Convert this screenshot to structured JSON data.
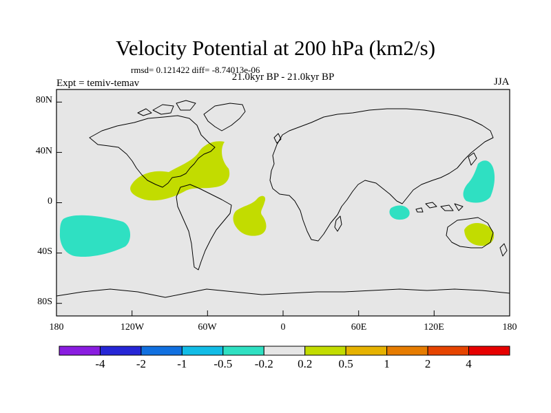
{
  "header": {
    "title": "Velocity Potential at 200 hPa (km2/s)",
    "stats": "rmsd= 0.121422 diff= -8.74013e-06",
    "experiment": "Expt = temiv-temav",
    "period": "21.0kyr BP - 21.0kyr BP",
    "season": "JJA"
  },
  "map": {
    "projection": "cylindrical-equidistant",
    "lon_range": [
      -180,
      180
    ],
    "lat_range": [
      -90,
      90
    ],
    "background_color": "#e6e6e6",
    "coastline_color": "#000000",
    "y_tick_labels": [
      "80N",
      "40N",
      "0",
      "40S",
      "80S"
    ],
    "x_tick_labels": [
      "180",
      "120W",
      "60W",
      "0",
      "60E",
      "120E",
      "180"
    ],
    "anomaly_regions": [
      {
        "name": "Central/eastern North Atlantic and Caribbean",
        "sign": "positive",
        "class": "0.2 to 0.5",
        "color": "#c2dc00"
      },
      {
        "name": "Equatorial South Atlantic",
        "sign": "positive",
        "class": "0.2 to 0.5",
        "color": "#c2dc00"
      },
      {
        "name": "Eastern Australia and Coral Sea",
        "sign": "positive",
        "class": "0.2 to 0.5",
        "color": "#c2dc00"
      },
      {
        "name": "South Pacific near dateline",
        "sign": "negative",
        "class": "-0.5 to -0.2",
        "color": "#2fe0c2"
      },
      {
        "name": "Eastern Indian Ocean",
        "sign": "negative",
        "class": "-0.5 to -0.2",
        "color": "#2fe0c2"
      },
      {
        "name": "Western North Pacific",
        "sign": "negative",
        "class": "-0.5 to -0.2",
        "color": "#2fe0c2"
      }
    ]
  },
  "colorbar": {
    "colors": [
      "#8a1de0",
      "#2626d6",
      "#1170e0",
      "#12bce6",
      "#2fe0c2",
      "#e6e6e6",
      "#c2dc00",
      "#e6b200",
      "#e67c00",
      "#e64400",
      "#e60000"
    ],
    "labels": [
      "-4",
      "-2",
      "-1",
      "-0.5",
      "-0.2",
      "0.2",
      "0.5",
      "1",
      "2",
      "4"
    ]
  }
}
